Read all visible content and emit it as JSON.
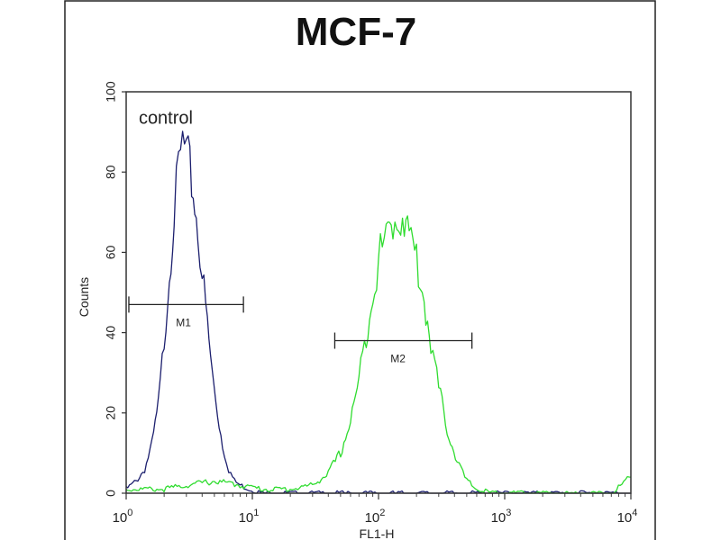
{
  "chart_data": {
    "type": "line",
    "title": "MCF-7",
    "xlabel": "FL1-H",
    "ylabel": "Counts",
    "xscale": "log",
    "xlim": [
      1,
      10000
    ],
    "ylim": [
      0,
      100
    ],
    "x_ticks": [
      {
        "base": "10",
        "exp": "0",
        "value": 1
      },
      {
        "base": "10",
        "exp": "1",
        "value": 10
      },
      {
        "base": "10",
        "exp": "2",
        "value": 100
      },
      {
        "base": "10",
        "exp": "3",
        "value": 1000
      },
      {
        "base": "10",
        "exp": "4",
        "value": 10000
      }
    ],
    "y_ticks": [
      "0",
      "20",
      "40",
      "60",
      "80",
      "100"
    ],
    "grid": false,
    "series": [
      {
        "name": "control",
        "color": "#1c1f6e",
        "points": [
          [
            1.0,
            1
          ],
          [
            1.2,
            3
          ],
          [
            1.4,
            6
          ],
          [
            1.6,
            12
          ],
          [
            1.8,
            22
          ],
          [
            2.0,
            38
          ],
          [
            2.2,
            55
          ],
          [
            2.4,
            70
          ],
          [
            2.6,
            80
          ],
          [
            2.8,
            87
          ],
          [
            3.0,
            84
          ],
          [
            3.2,
            80
          ],
          [
            3.4,
            75
          ],
          [
            3.7,
            66
          ],
          [
            4.0,
            55
          ],
          [
            4.4,
            42
          ],
          [
            4.8,
            30
          ],
          [
            5.3,
            20
          ],
          [
            5.8,
            12
          ],
          [
            6.5,
            6
          ],
          [
            7.2,
            3
          ],
          [
            8.0,
            2
          ],
          [
            9.5,
            1
          ],
          [
            12,
            0
          ],
          [
            20,
            0
          ],
          [
            100,
            0
          ],
          [
            1000,
            0
          ],
          [
            10000,
            0
          ]
        ]
      },
      {
        "color": "#2fdc2f",
        "points": [
          [
            1.0,
            1
          ],
          [
            2,
            1
          ],
          [
            3,
            2
          ],
          [
            5,
            3
          ],
          [
            8,
            2
          ],
          [
            12,
            1
          ],
          [
            20,
            1
          ],
          [
            30,
            2
          ],
          [
            40,
            5
          ],
          [
            50,
            10
          ],
          [
            60,
            18
          ],
          [
            70,
            28
          ],
          [
            80,
            40
          ],
          [
            90,
            50
          ],
          [
            100,
            58
          ],
          [
            115,
            64
          ],
          [
            130,
            67
          ],
          [
            145,
            70
          ],
          [
            160,
            68
          ],
          [
            175,
            65
          ],
          [
            200,
            58
          ],
          [
            230,
            48
          ],
          [
            260,
            38
          ],
          [
            300,
            26
          ],
          [
            350,
            16
          ],
          [
            420,
            8
          ],
          [
            500,
            3
          ],
          [
            600,
            1
          ],
          [
            800,
            0
          ],
          [
            1000,
            0
          ],
          [
            3000,
            0
          ],
          [
            7000,
            0
          ],
          [
            10000,
            4
          ]
        ]
      }
    ],
    "markers": [
      {
        "label": "M1",
        "x_start": 1.05,
        "x_end": 8.5,
        "y": 47
      },
      {
        "label": "M2",
        "x_start": 45,
        "x_end": 550,
        "y": 38
      }
    ],
    "annotations": [
      {
        "text": "control",
        "x": 1.3,
        "y": 92
      }
    ]
  }
}
